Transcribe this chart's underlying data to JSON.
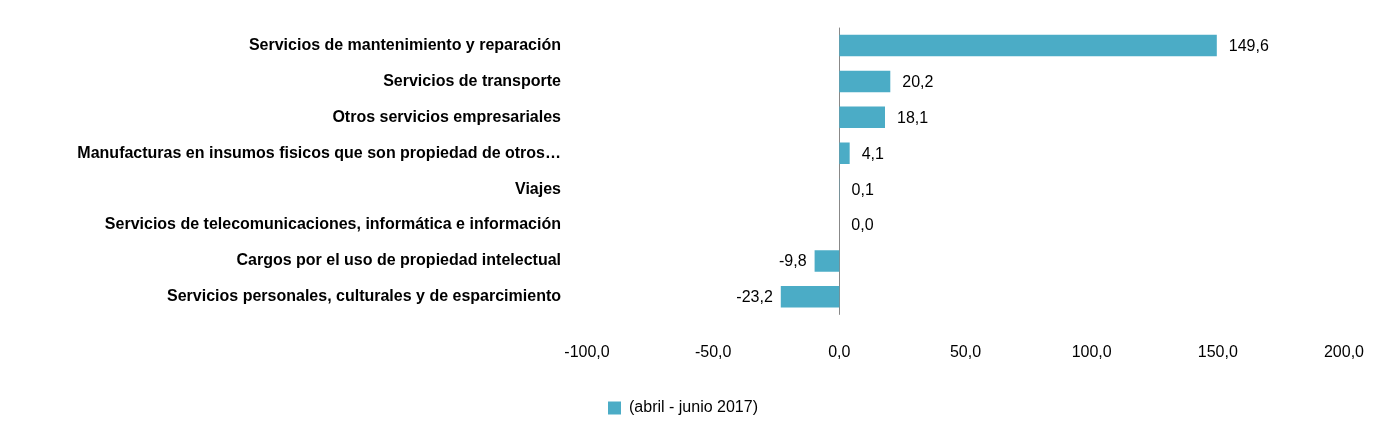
{
  "chart_data": {
    "type": "bar",
    "orientation": "horizontal",
    "categories": [
      "Servicios de mantenimiento y reparación",
      "Servicios de transporte",
      "Otros servicios empresariales",
      "Manufacturas en insumos fisicos que son propiedad de otros…",
      "Viajes",
      "Servicios de telecomunicaciones, informática e información",
      "Cargos por el uso de propiedad intelectual",
      "Servicios personales, culturales y de esparcimiento"
    ],
    "series": [
      {
        "name": "(abril - junio 2017)",
        "color": "#4bacc6",
        "values": [
          149.6,
          20.2,
          18.1,
          4.1,
          0.1,
          0.0,
          -9.8,
          -23.2
        ],
        "value_labels": [
          "149,6",
          "20,2",
          "18,1",
          "4,1",
          "0,1",
          "0,0",
          "-9,8",
          "-23,2"
        ]
      }
    ],
    "xlim": [
      -100,
      200
    ],
    "xticks": [
      {
        "value": -100,
        "label": "-100,0"
      },
      {
        "value": -50,
        "label": "-50,0"
      },
      {
        "value": 0,
        "label": "0,0"
      },
      {
        "value": 50,
        "label": "50,0"
      },
      {
        "value": 100,
        "label": "100,0"
      },
      {
        "value": 150,
        "label": "150,0"
      },
      {
        "value": 200,
        "label": "200,0"
      }
    ],
    "ref_lines": [
      {
        "axis": "x",
        "value": 0,
        "color": "#888888"
      }
    ],
    "grid": false,
    "legend": "bottom"
  }
}
